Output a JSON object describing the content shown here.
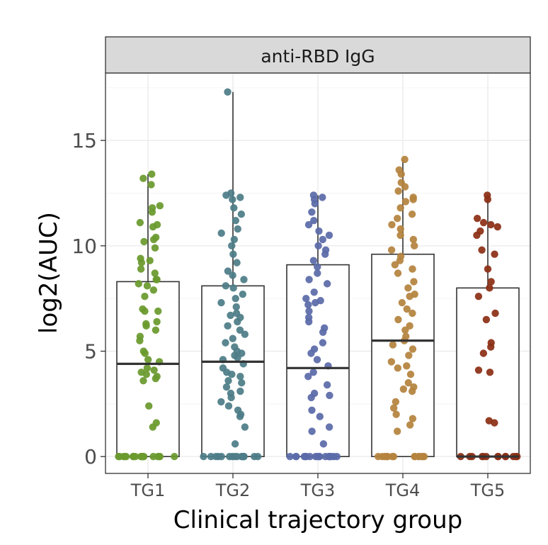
{
  "chart_data": {
    "type": "box",
    "panel_title": "anti-RBD IgG",
    "xlabel": "Clinical trajectory group",
    "ylabel": "log2(AUC)",
    "ylim": [
      -0.8,
      18.2
    ],
    "yticks": [
      0,
      5,
      10,
      15
    ],
    "grid": true,
    "categories": [
      "TG1",
      "TG2",
      "TG3",
      "TG4",
      "TG5"
    ],
    "colors": {
      "TG1": "#6a9a2e",
      "TG2": "#4e7d88",
      "TG3": "#5b6aa9",
      "TG4": "#b5833e",
      "TG5": "#8c2f16"
    },
    "boxes": [
      {
        "group": "TG1",
        "q1": 0,
        "median": 4.4,
        "q3": 8.3,
        "whisker_low": 0,
        "whisker_high": 13.4
      },
      {
        "group": "TG2",
        "q1": 0,
        "median": 4.5,
        "q3": 8.1,
        "whisker_low": 0,
        "whisker_high": 17.3
      },
      {
        "group": "TG3",
        "q1": 0,
        "median": 4.2,
        "q3": 9.1,
        "whisker_low": 0,
        "whisker_high": 12.4
      },
      {
        "group": "TG4",
        "q1": 0,
        "median": 5.5,
        "q3": 9.6,
        "whisker_low": 0,
        "whisker_high": 14.1
      },
      {
        "group": "TG5",
        "q1": 0,
        "median": 0,
        "q3": 8.0,
        "whisker_low": 0,
        "whisker_high": 12.4
      }
    ],
    "points": {
      "TG1": [
        13.4,
        13.2,
        12.9,
        11.9,
        11.8,
        11.6,
        11.1,
        11.0,
        10.9,
        10.4,
        10.3,
        10.2,
        9.9,
        9.4,
        9.3,
        9.2,
        8.9,
        8.7,
        8.4,
        8.4,
        8.2,
        8.1,
        7.9,
        7.6,
        7.0,
        6.9,
        6.9,
        6.4,
        6.3,
        6.2,
        6.0,
        5.7,
        5.5,
        5.0,
        4.9,
        4.6,
        4.5,
        4.2,
        4.1,
        4.0,
        3.9,
        3.8,
        3.7,
        3.6,
        2.4,
        1.6,
        1.4,
        0,
        0,
        0,
        0,
        0,
        0,
        0,
        0,
        0,
        0,
        0,
        0,
        0,
        0,
        0,
        0,
        0,
        0
      ],
      "TG2": [
        17.3,
        12.5,
        12.4,
        12.3,
        12.2,
        11.8,
        11.5,
        11.2,
        10.8,
        10.6,
        10.3,
        10.0,
        9.6,
        9.2,
        8.8,
        8.6,
        8.4,
        8.1,
        8.0,
        7.7,
        7.5,
        7.3,
        7.1,
        6.8,
        6.7,
        6.6,
        6.4,
        6.2,
        6.0,
        5.8,
        5.6,
        5.4,
        5.2,
        5.0,
        4.9,
        4.8,
        4.7,
        4.6,
        4.4,
        4.2,
        4.0,
        3.9,
        3.8,
        3.6,
        3.5,
        3.3,
        3.1,
        3.0,
        2.8,
        2.6,
        2.4,
        2.2,
        2.0,
        1.9,
        1.4,
        0.6,
        0,
        0,
        0,
        0,
        0,
        0,
        0,
        0,
        0,
        0,
        0,
        0,
        0,
        0,
        0,
        0,
        0
      ],
      "TG3": [
        12.4,
        12.3,
        12.2,
        12.0,
        11.6,
        11.2,
        11.0,
        10.7,
        10.5,
        10.3,
        10.0,
        9.8,
        9.6,
        9.3,
        9.0,
        8.7,
        8.4,
        8.2,
        7.8,
        7.5,
        7.4,
        7.3,
        7.2,
        6.9,
        6.6,
        6.4,
        6.1,
        5.9,
        5.4,
        5.1,
        4.9,
        4.6,
        4.3,
        4.0,
        3.8,
        3.4,
        3.0,
        2.9,
        2.8,
        2.2,
        1.9,
        1.4,
        1.2,
        0.6,
        0,
        0,
        0,
        0,
        0,
        0,
        0,
        0,
        0,
        0,
        0,
        0,
        0,
        0,
        0,
        0,
        0,
        0
      ],
      "TG4": [
        14.1,
        13.6,
        13.4,
        13.0,
        12.8,
        12.6,
        12.3,
        12.2,
        12.1,
        11.8,
        11.5,
        11.3,
        11.0,
        10.8,
        10.5,
        10.3,
        10.0,
        9.8,
        9.5,
        9.3,
        9.1,
        8.9,
        8.7,
        8.3,
        8.0,
        7.7,
        7.6,
        7.3,
        7.0,
        6.8,
        6.5,
        6.2,
        6.0,
        5.7,
        5.5,
        5.3,
        5.1,
        4.8,
        4.5,
        4.3,
        4.2,
        3.9,
        3.5,
        3.3,
        3.2,
        3.1,
        2.6,
        2.3,
        2.0,
        1.8,
        1.5,
        1.2,
        0,
        0,
        0,
        0,
        0,
        0,
        0,
        0,
        0,
        0,
        0,
        0,
        0,
        0
      ],
      "TG5": [
        12.4,
        12.2,
        11.3,
        11.1,
        11.0,
        10.9,
        10.7,
        10.5,
        9.8,
        9.6,
        8.9,
        8.3,
        8.0,
        7.6,
        6.8,
        6.5,
        5.4,
        5.2,
        4.9,
        4.1,
        4.0,
        1.7,
        1.6,
        0,
        0,
        0,
        0,
        0,
        0,
        0,
        0,
        0,
        0,
        0,
        0,
        0
      ]
    }
  }
}
